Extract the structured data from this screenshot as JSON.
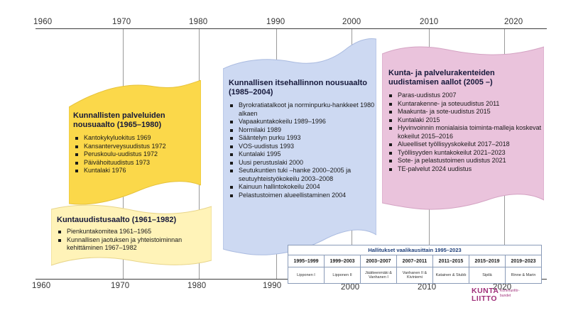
{
  "axis": {
    "top_ticks": [
      "1960",
      "1970",
      "1980",
      "1990",
      "2000",
      "2010",
      "2020"
    ],
    "bottom_ticks": [
      "1960",
      "1970",
      "1980",
      "1990",
      "2000",
      "2010",
      "2020"
    ]
  },
  "panels": {
    "kuntauudistusaalto": {
      "title": "Kuntauudistusaalto (1961–1982)",
      "items": [
        "Pienkuntakomitea 1961–1965",
        "Kunnallisen jaotuksen ja yhteistoiminnan kehittäminen 1967–1982"
      ]
    },
    "palveluiden_nousuaalto": {
      "title": "Kunnallisten palveluiden nousuaalto (1965–1980)",
      "items": [
        "Kantokykyluokitus 1969",
        "Kansanterveysuudistus 1972",
        "Peruskoulu-uudistus 1972",
        "Päivähoituudistus 1973",
        "Kuntalaki 1976"
      ]
    },
    "itsehallinnon_nousuaalto": {
      "title": "Kunnallisen itsehallinnon nousuaalto (1985–2004)",
      "items": [
        "Byrokratiatalkoot ja norminpurku-hankkeet 1980 alkaen",
        "Vapaakuntakokeilu 1989–1996",
        "Normilaki 1989",
        "Sääntelyn purku 1993",
        "VOS-uudistus 1993",
        "Kuntalaki 1995",
        "Uusi perustuslaki 2000",
        "Seutukuntien tuki –hanke 2000–2005 ja seutuyhteistyökokeilu 2003–2008",
        "Kainuun hallintokokeilu 2004",
        "Pelastustoimen alueellistaminen 2004"
      ]
    },
    "kunta_palvelurakenteiden": {
      "title": "Kunta- ja palvelurakenteiden uudistamisen aallot (2005 –)",
      "items": [
        "Paras-uudistus 2007",
        "Kuntarakenne- ja soteuudistus 2011",
        "Maakunta- ja sote-uudistus 2015",
        "Kuntalaki 2015",
        "Hyvinvoinnin monialaisia toiminta-malleja koskevat kokeilut 2015–2016",
        "Alueelliset työllisyyskokeilut 2017–2018",
        "Työllisyyden kuntakokeilut 2021–2023",
        "Sote- ja pelastustoimen uudistus 2021",
        "TE-palvelut 2024 uudistus"
      ]
    }
  },
  "governments": {
    "caption": "Hallitukset vaalikausittain 1995–2023",
    "periods": [
      "1995–1999",
      "1999–2003",
      "2003–2007",
      "2007–2011",
      "2011–2015",
      "2015–2019",
      "2019–2023"
    ],
    "prime_ministers": [
      "Lipponen I",
      "Lipponen II",
      "Jäätteenmäki & Vanhanen I",
      "Vanhanen II & Kiviniemi",
      "Katainen & Stubb",
      "Sipilä",
      "Rinne & Marin"
    ]
  },
  "logo": {
    "word_top": "KUNTA",
    "word_bottom": "LIITTO",
    "subtitle": "Kommunför-bundet"
  },
  "colors": {
    "yellow": "#fbd84a",
    "light_yellow": "#fff3b8",
    "blue": "#cdd9f2",
    "pink": "#eac3dc",
    "accent_blue": "#1e3f7a",
    "brand": "#a0307a"
  }
}
